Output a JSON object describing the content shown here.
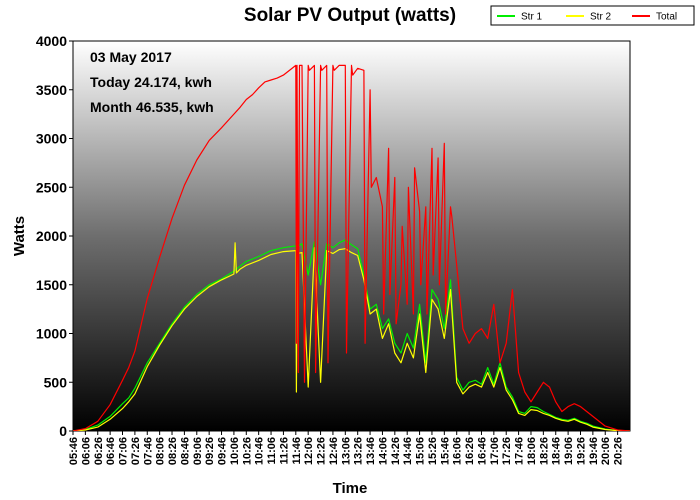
{
  "chart_data": {
    "type": "line",
    "title": "Solar PV Output (watts)",
    "xlabel": "Time",
    "ylabel": "Watts",
    "ylim": [
      0,
      4000
    ],
    "yticks": [
      0,
      500,
      1000,
      1500,
      2000,
      2500,
      3000,
      3500,
      4000
    ],
    "x_range": [
      "05:46",
      "20:46"
    ],
    "xticks": [
      "05:46",
      "06:06",
      "06:26",
      "06:46",
      "07:06",
      "07:26",
      "07:46",
      "08:06",
      "08:26",
      "08:46",
      "09:06",
      "09:26",
      "09:46",
      "10:06",
      "10:26",
      "10:46",
      "11:06",
      "11:26",
      "11:46",
      "12:06",
      "12:26",
      "12:46",
      "13:06",
      "13:26",
      "13:46",
      "14:06",
      "14:26",
      "14:46",
      "15:06",
      "15:26",
      "15:46",
      "16:06",
      "16:26",
      "16:46",
      "17:06",
      "17:26",
      "17:46",
      "18:06",
      "18:26",
      "18:46",
      "19:06",
      "19:26",
      "19:46",
      "20:06",
      "20:26"
    ],
    "grid": false,
    "legend_position": "top-right",
    "annotations": [
      "03 May 2017",
      "Today 24.174, kwh",
      "Month 46.535, kwh"
    ],
    "series": [
      {
        "name": "Str 1",
        "color": "#00ee00",
        "x": [
          "05:46",
          "06:06",
          "06:26",
          "06:46",
          "07:06",
          "07:16",
          "07:26",
          "07:36",
          "07:46",
          "08:06",
          "08:26",
          "08:46",
          "09:06",
          "09:26",
          "09:46",
          "10:06",
          "10:16",
          "10:26",
          "10:46",
          "11:06",
          "11:26",
          "11:46",
          "11:47",
          "11:48",
          "11:56",
          "12:06",
          "12:16",
          "12:26",
          "12:36",
          "12:46",
          "12:56",
          "13:06",
          "13:16",
          "13:26",
          "13:36",
          "13:46",
          "13:56",
          "14:06",
          "14:16",
          "14:26",
          "14:36",
          "14:46",
          "14:56",
          "15:06",
          "15:16",
          "15:26",
          "15:36",
          "15:46",
          "15:56",
          "16:06",
          "16:16",
          "16:26",
          "16:36",
          "16:46",
          "16:56",
          "17:06",
          "17:16",
          "17:26",
          "17:36",
          "17:46",
          "17:56",
          "18:06",
          "18:16",
          "18:26",
          "18:36",
          "18:46",
          "18:56",
          "19:06",
          "19:16",
          "19:26",
          "19:36",
          "19:46",
          "20:06",
          "20:26",
          "20:46"
        ],
        "y": [
          0,
          15,
          60,
          150,
          280,
          340,
          440,
          570,
          700,
          900,
          1100,
          1270,
          1400,
          1500,
          1560,
          1640,
          1690,
          1740,
          1790,
          1850,
          1880,
          1900,
          1100,
          1890,
          1920,
          1600,
          1940,
          1500,
          1920,
          1880,
          1930,
          1960,
          1910,
          1870,
          1600,
          1250,
          1300,
          1050,
          1150,
          900,
          800,
          1000,
          850,
          1300,
          700,
          1450,
          1350,
          1050,
          1550,
          550,
          420,
          500,
          520,
          480,
          650,
          480,
          700,
          450,
          350,
          200,
          180,
          250,
          240,
          200,
          170,
          140,
          120,
          110,
          130,
          100,
          80,
          50,
          20,
          5,
          0
        ]
      },
      {
        "name": "Str 2",
        "color": "#ffff00",
        "x": [
          "05:46",
          "06:06",
          "06:26",
          "06:46",
          "07:06",
          "07:16",
          "07:26",
          "07:36",
          "07:46",
          "08:06",
          "08:26",
          "08:46",
          "09:06",
          "09:26",
          "09:46",
          "10:06",
          "10:08",
          "10:10",
          "10:16",
          "10:26",
          "10:46",
          "11:06",
          "11:26",
          "11:46",
          "11:47",
          "11:48",
          "11:56",
          "12:06",
          "12:16",
          "12:26",
          "12:36",
          "12:46",
          "12:56",
          "13:06",
          "13:16",
          "13:26",
          "13:36",
          "13:46",
          "13:56",
          "14:06",
          "14:16",
          "14:26",
          "14:36",
          "14:46",
          "14:56",
          "15:06",
          "15:16",
          "15:26",
          "15:36",
          "15:46",
          "15:56",
          "16:06",
          "16:16",
          "16:26",
          "16:36",
          "16:46",
          "16:56",
          "17:06",
          "17:16",
          "17:26",
          "17:36",
          "17:46",
          "17:56",
          "18:06",
          "18:16",
          "18:26",
          "18:36",
          "18:46",
          "18:56",
          "19:06",
          "19:16",
          "19:26",
          "19:36",
          "19:46",
          "20:06",
          "20:26",
          "20:46"
        ],
        "y": [
          0,
          10,
          40,
          120,
          230,
          300,
          380,
          520,
          660,
          880,
          1080,
          1250,
          1380,
          1480,
          1550,
          1610,
          1930,
          1620,
          1660,
          1700,
          1750,
          1810,
          1840,
          1850,
          400,
          1820,
          1830,
          450,
          1880,
          500,
          1850,
          1820,
          1860,
          1870,
          1830,
          1800,
          1550,
          1200,
          1250,
          950,
          1100,
          800,
          700,
          900,
          750,
          1200,
          600,
          1350,
          1250,
          950,
          1450,
          500,
          380,
          450,
          480,
          450,
          600,
          450,
          650,
          420,
          320,
          180,
          160,
          220,
          210,
          180,
          160,
          130,
          110,
          100,
          120,
          90,
          70,
          40,
          15,
          3,
          0
        ]
      },
      {
        "name": "Total",
        "color": "#ff0000",
        "x": [
          "05:46",
          "06:06",
          "06:26",
          "06:46",
          "07:06",
          "07:16",
          "07:26",
          "07:36",
          "07:46",
          "08:06",
          "08:26",
          "08:46",
          "09:06",
          "09:26",
          "09:46",
          "10:06",
          "10:16",
          "10:26",
          "10:36",
          "10:46",
          "10:56",
          "11:06",
          "11:16",
          "11:26",
          "11:46",
          "11:47",
          "11:48",
          "11:50",
          "11:52",
          "11:56",
          "12:00",
          "12:06",
          "12:08",
          "12:16",
          "12:18",
          "12:26",
          "12:28",
          "12:36",
          "12:38",
          "12:46",
          "12:48",
          "12:56",
          "13:06",
          "13:08",
          "13:16",
          "13:18",
          "13:26",
          "13:36",
          "13:38",
          "13:46",
          "13:48",
          "13:56",
          "14:06",
          "14:08",
          "14:16",
          "14:18",
          "14:26",
          "14:28",
          "14:36",
          "14:38",
          "14:46",
          "14:48",
          "14:56",
          "14:58",
          "15:06",
          "15:08",
          "15:16",
          "15:18",
          "15:26",
          "15:28",
          "15:36",
          "15:38",
          "15:46",
          "15:48",
          "15:56",
          "15:58",
          "16:06",
          "16:16",
          "16:26",
          "16:36",
          "16:46",
          "16:56",
          "17:06",
          "17:16",
          "17:26",
          "17:36",
          "17:46",
          "17:56",
          "18:06",
          "18:16",
          "18:26",
          "18:36",
          "18:46",
          "18:56",
          "19:06",
          "19:16",
          "19:26",
          "19:36",
          "19:46",
          "20:06",
          "20:26",
          "20:46"
        ],
        "y": [
          0,
          25,
          100,
          270,
          520,
          650,
          820,
          1090,
          1360,
          1780,
          2180,
          2520,
          2780,
          2980,
          3110,
          3250,
          3320,
          3400,
          3450,
          3520,
          3580,
          3600,
          3620,
          3650,
          3750,
          900,
          3750,
          600,
          3750,
          3750,
          500,
          3750,
          3700,
          3750,
          600,
          3750,
          3700,
          3750,
          700,
          3750,
          3700,
          3750,
          3750,
          800,
          3750,
          3650,
          3720,
          3700,
          900,
          3500,
          2500,
          2600,
          2300,
          1200,
          2900,
          1400,
          2600,
          1100,
          1500,
          2100,
          1300,
          2500,
          1200,
          2700,
          2250,
          1500,
          2300,
          1200,
          2900,
          1600,
          2800,
          1500,
          2950,
          1200,
          2300,
          2200,
          1700,
          1050,
          900,
          1000,
          1050,
          950,
          1300,
          700,
          900,
          1450,
          600,
          400,
          300,
          400,
          500,
          450,
          300,
          200,
          250,
          280,
          250,
          200,
          150,
          50,
          10,
          0
        ]
      }
    ]
  }
}
